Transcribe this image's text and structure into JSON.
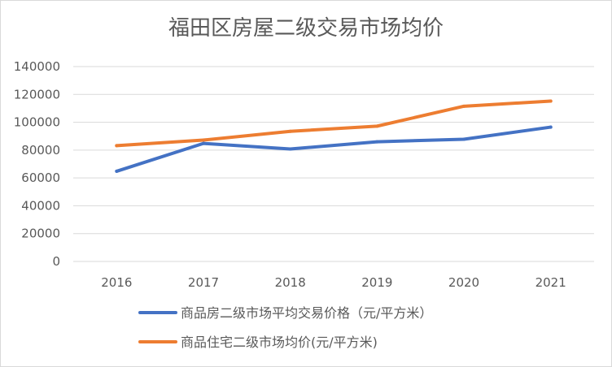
{
  "chart_data": {
    "type": "line",
    "title": "福田区房屋二级交易市场均价",
    "categories": [
      "2016",
      "2017",
      "2018",
      "2019",
      "2020",
      "2021"
    ],
    "ylim": [
      0,
      140000
    ],
    "yticks": [
      "0",
      "20000",
      "40000",
      "60000",
      "80000",
      "100000",
      "120000",
      "140000"
    ],
    "grid": true,
    "legend_position": "bottom",
    "series": [
      {
        "name": "商品房二级市场平均交易价格（元/平方米）",
        "color": "#4472c4",
        "values": [
          64800,
          84800,
          80800,
          86000,
          87800,
          96500
        ]
      },
      {
        "name": "商品住宅二级市场均价(元/平方米)",
        "color": "#ed7d31",
        "values": [
          83200,
          87200,
          93500,
          97200,
          111500,
          115200
        ]
      }
    ]
  }
}
